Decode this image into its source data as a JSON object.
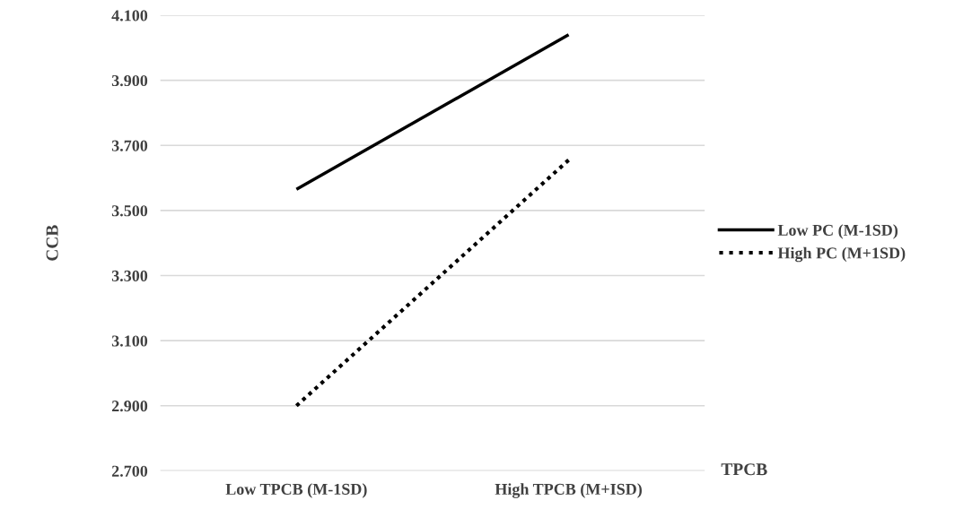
{
  "chart_data": {
    "type": "line",
    "ylabel": "CCB",
    "xlabel": "TPCB",
    "categories": [
      "Low TPCB (M-1SD)",
      "High TPCB (M+ISD)"
    ],
    "series": [
      {
        "name": "Low PC (M-1SD)",
        "color": "#000000",
        "values": [
          3.565,
          4.04
        ],
        "line_style": "solid"
      },
      {
        "name": "High PC (M+1SD)",
        "color": "#000000",
        "values": [
          2.9,
          3.655
        ],
        "line_style": "dotted"
      }
    ],
    "ylim": [
      2.7,
      4.1
    ],
    "yticks": [
      {
        "value": 2.7,
        "label": "2.700"
      },
      {
        "value": 2.9,
        "label": "2.900"
      },
      {
        "value": 3.1,
        "label": "3.100"
      },
      {
        "value": 3.3,
        "label": "3.300"
      },
      {
        "value": 3.5,
        "label": "3.500"
      },
      {
        "value": 3.7,
        "label": "3.700"
      },
      {
        "value": 3.9,
        "label": "3.900"
      },
      {
        "value": 4.1,
        "label": "4.100"
      }
    ],
    "grid": "y",
    "legend": "right",
    "marker": "none"
  }
}
